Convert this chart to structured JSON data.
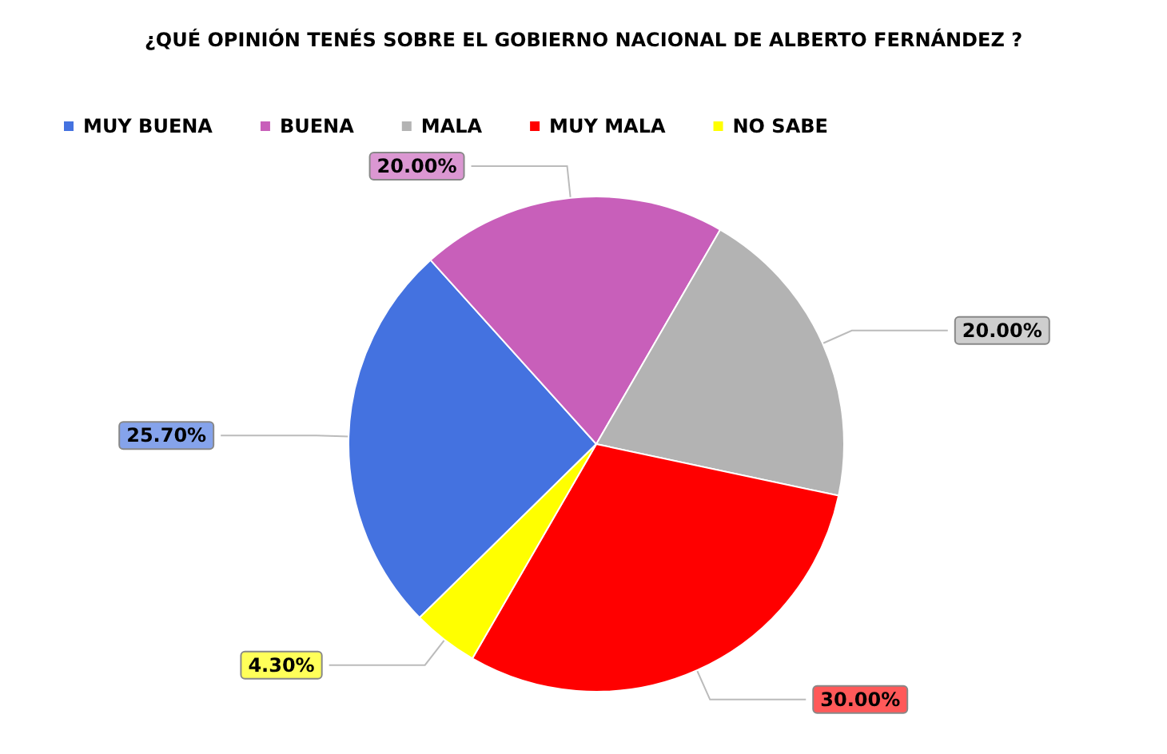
{
  "chart_data": {
    "type": "pie",
    "title": "¿QUÉ OPINIÓN TENÉS SOBRE EL GOBIERNO NACIONAL DE ALBERTO FERNÁNDEZ ?",
    "categories": [
      "MUY BUENA",
      "BUENA",
      "MALA",
      "MUY MALA",
      "NO SABE"
    ],
    "values": [
      25.7,
      20,
      20,
      30,
      4.3
    ],
    "colors": [
      "#4472e0",
      "#c85fba",
      "#b3b3b3",
      "#ff0000",
      "#ffff00"
    ],
    "value_labels": [
      "25.70%",
      "20.00%",
      "20.00%",
      "30.00%",
      "4.30%"
    ],
    "legend": "top left"
  }
}
